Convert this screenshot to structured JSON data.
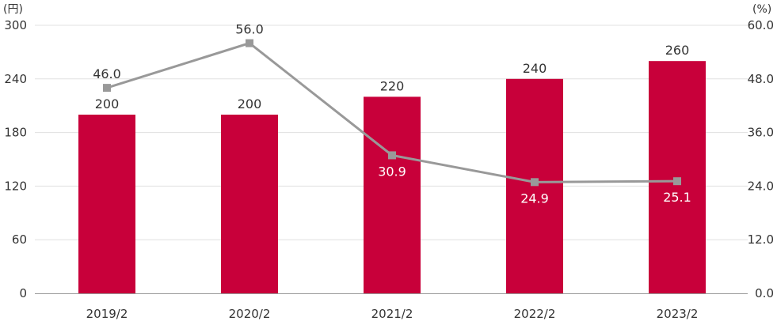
{
  "chart_data": {
    "type": "bar",
    "categories": [
      "2019/2",
      "2020/2",
      "2021/2",
      "2022/2",
      "2023/2"
    ],
    "series": [
      {
        "kind": "bar",
        "axis": "left",
        "values": [
          200,
          200,
          220,
          240,
          260
        ],
        "labels": [
          "200",
          "200",
          "220",
          "240",
          "260"
        ],
        "color": "#c8003a"
      },
      {
        "kind": "line",
        "axis": "right",
        "values": [
          46.0,
          56.0,
          30.9,
          24.9,
          25.1
        ],
        "labels": [
          "46.0",
          "56.0",
          "30.9",
          "24.9",
          "25.1"
        ],
        "color": "#999999"
      }
    ],
    "left_axis": {
      "unit": "(円)",
      "ylim": [
        0,
        300
      ],
      "ticks": [
        "0",
        "60",
        "120",
        "180",
        "240",
        "300"
      ]
    },
    "right_axis": {
      "unit": "(%)",
      "ylim": [
        0,
        60
      ],
      "ticks": [
        "0.0",
        "12.0",
        "24.0",
        "36.0",
        "48.0",
        "60.0"
      ]
    },
    "grid": true,
    "colors": {
      "bar": "#c8003a",
      "line": "#999999",
      "grid": "#e0e0e0",
      "axis": "#999999"
    }
  }
}
